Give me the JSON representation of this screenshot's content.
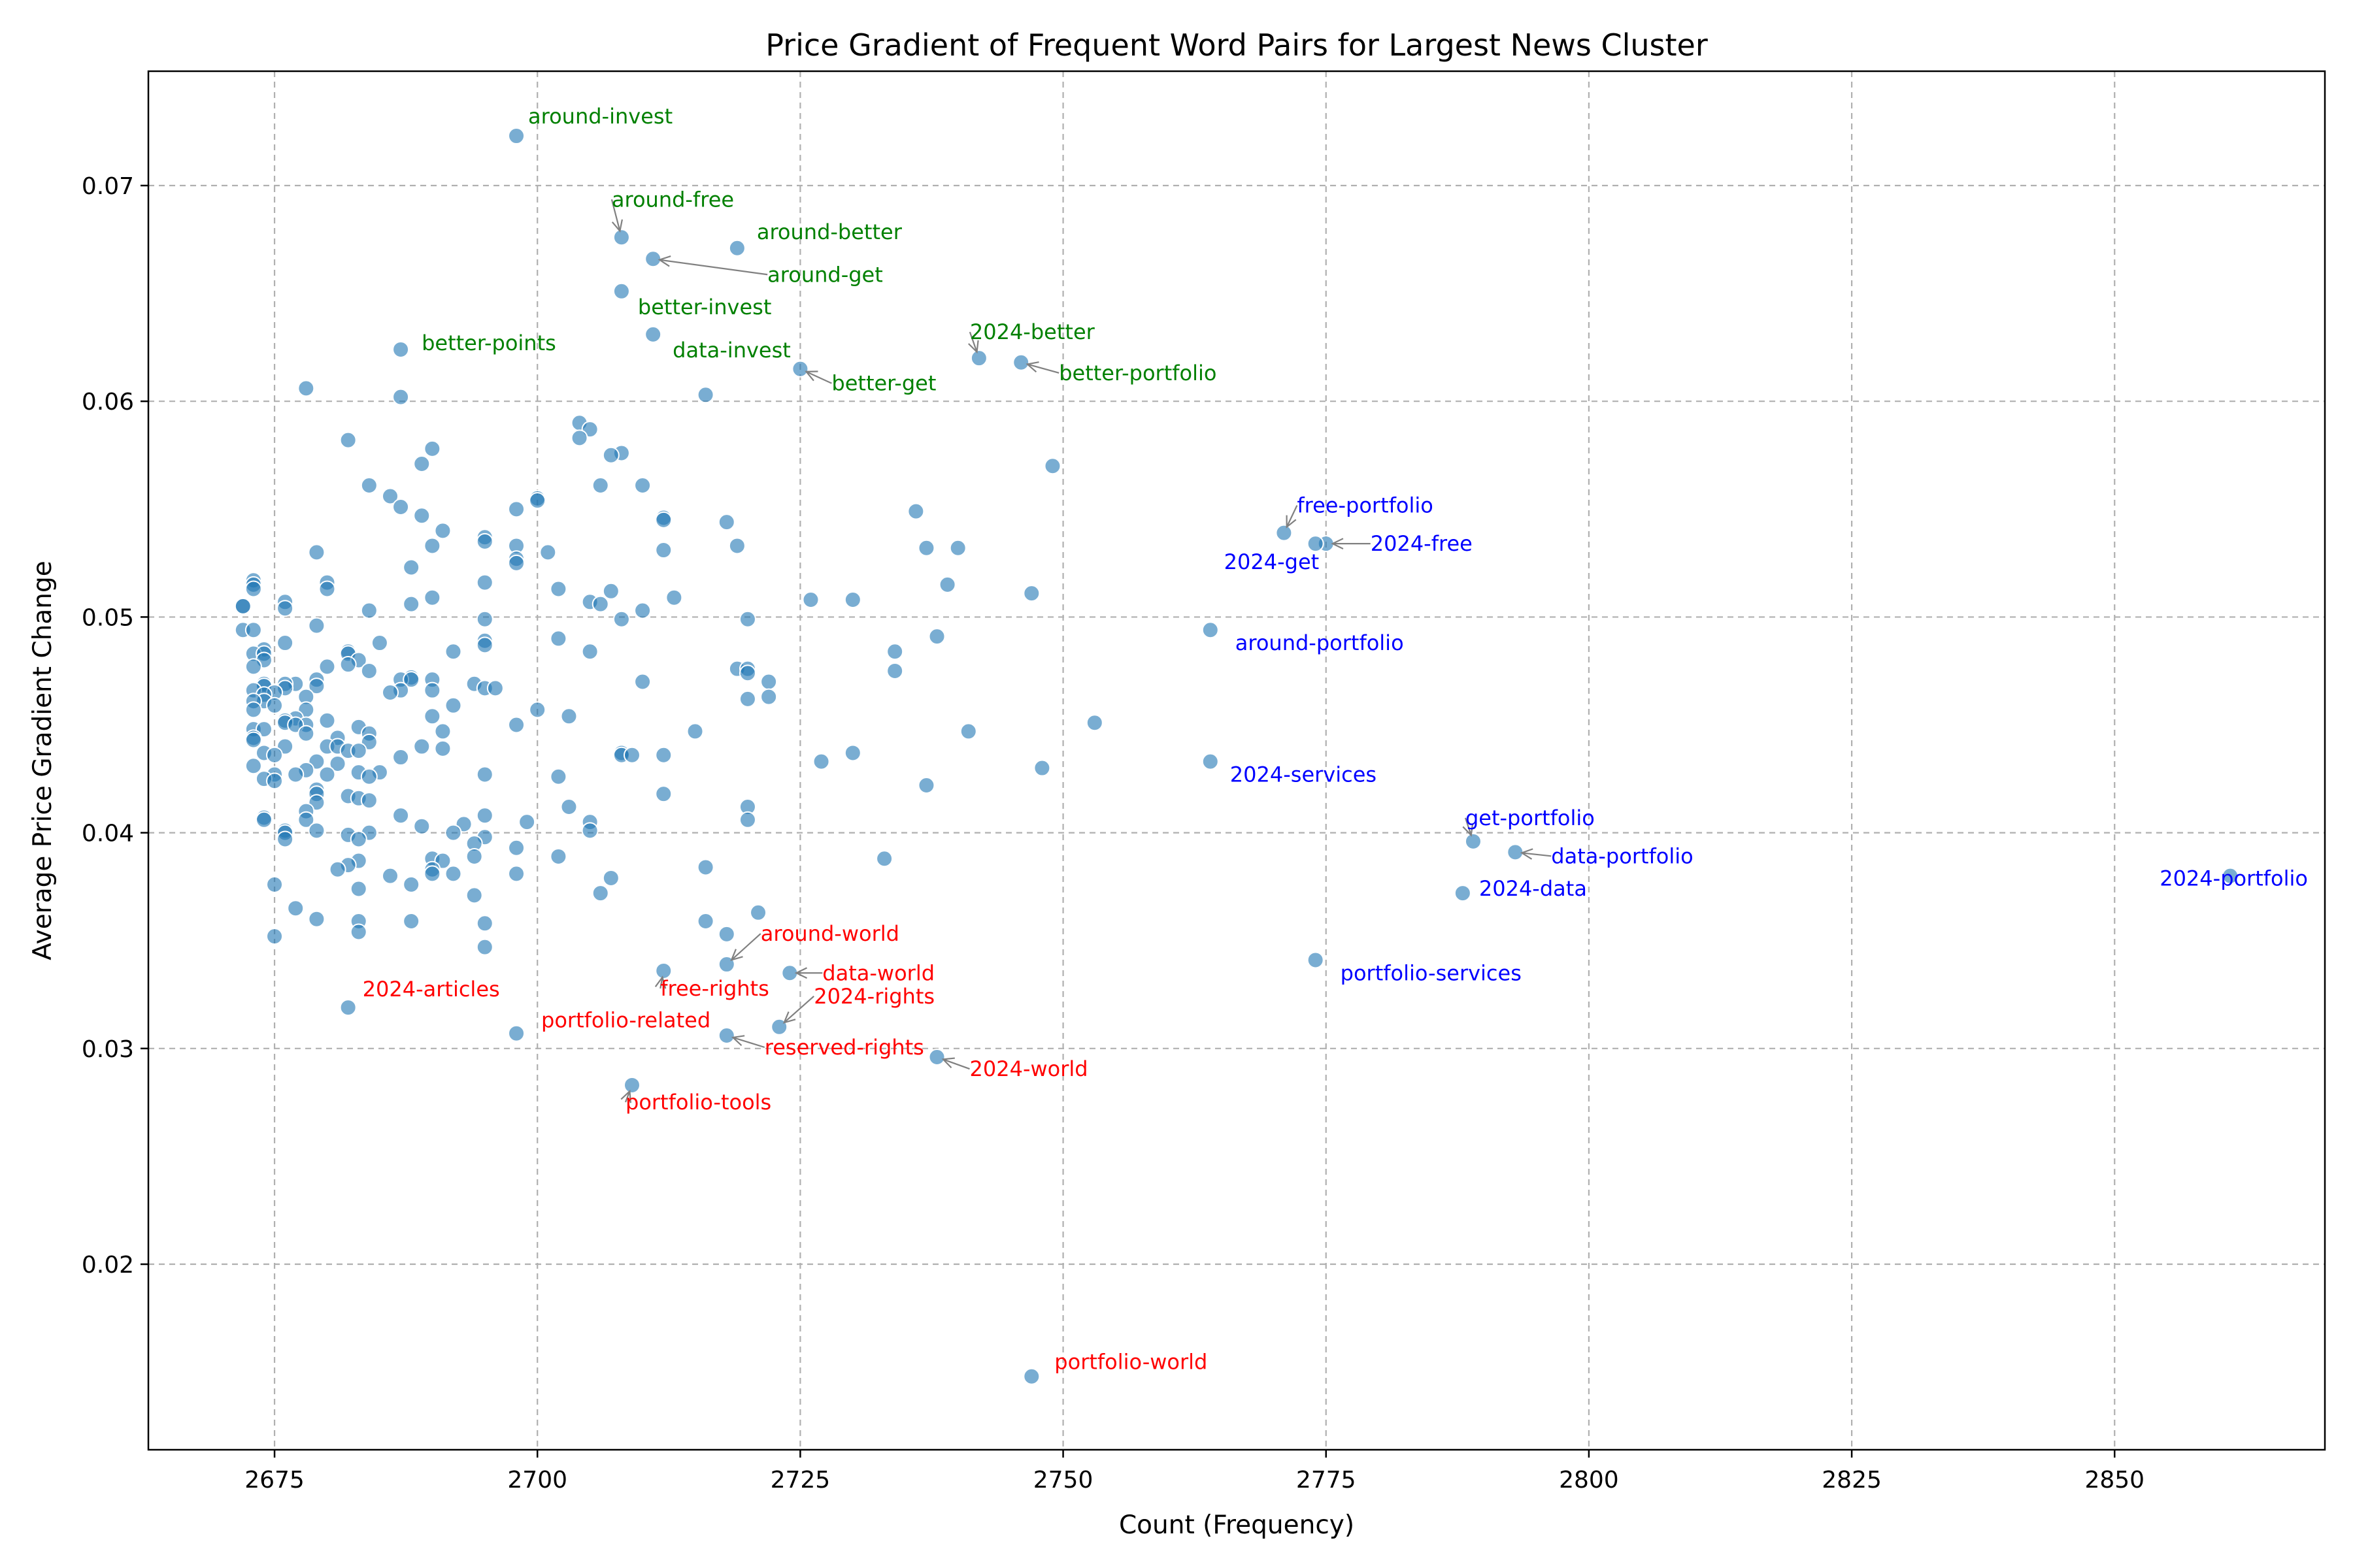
{
  "chart_data": {
    "type": "scatter",
    "title": "Price Gradient of Frequent Word Pairs for Largest News Cluster",
    "xlabel": "Count (Frequency)",
    "ylabel": "Average Price Gradient Change",
    "xlim": [
      2663,
      2870
    ],
    "ylim": [
      0.0114,
      0.0753
    ],
    "xticks": [
      "2675",
      "2700",
      "2725",
      "2750",
      "2775",
      "2800",
      "2825",
      "2850"
    ],
    "yticks": [
      "0.02",
      "0.03",
      "0.04",
      "0.05",
      "0.06",
      "0.07"
    ],
    "grid": true,
    "point_color": "#1f77b4",
    "annotation_colors": {
      "green": "#008000",
      "blue": "#0000ff",
      "red": "#ff0000"
    },
    "annotations": [
      {
        "label": "around-invest",
        "x": 2698,
        "y": 0.0723,
        "color": "green"
      },
      {
        "label": "around-free",
        "x": 2708,
        "y": 0.0676,
        "color": "green"
      },
      {
        "label": "around-better",
        "x": 2719,
        "y": 0.0671,
        "color": "green"
      },
      {
        "label": "around-get",
        "x": 2711,
        "y": 0.0666,
        "color": "green"
      },
      {
        "label": "better-invest",
        "x": 2708,
        "y": 0.0651,
        "color": "green"
      },
      {
        "label": "data-invest",
        "x": 2711,
        "y": 0.0631,
        "color": "green"
      },
      {
        "label": "better-points",
        "x": 2687,
        "y": 0.0624,
        "color": "green"
      },
      {
        "label": "2024-better",
        "x": 2742,
        "y": 0.062,
        "color": "green"
      },
      {
        "label": "better-portfolio",
        "x": 2746,
        "y": 0.0618,
        "color": "green"
      },
      {
        "label": "better-get",
        "x": 2725,
        "y": 0.0615,
        "color": "green"
      },
      {
        "label": "free-portfolio",
        "x": 2771,
        "y": 0.0539,
        "color": "blue"
      },
      {
        "label": "2024-free",
        "x": 2775,
        "y": 0.0534,
        "color": "blue"
      },
      {
        "label": "2024-get",
        "x": 2774,
        "y": 0.0534,
        "color": "blue"
      },
      {
        "label": "around-portfolio",
        "x": 2764,
        "y": 0.0494,
        "color": "blue"
      },
      {
        "label": "2024-services",
        "x": 2764,
        "y": 0.0433,
        "color": "blue"
      },
      {
        "label": "get-portfolio",
        "x": 2789,
        "y": 0.0396,
        "color": "blue"
      },
      {
        "label": "data-portfolio",
        "x": 2793,
        "y": 0.0391,
        "color": "blue"
      },
      {
        "label": "2024-portfolio",
        "x": 2861,
        "y": 0.038,
        "color": "blue"
      },
      {
        "label": "2024-data",
        "x": 2788,
        "y": 0.0372,
        "color": "blue"
      },
      {
        "label": "portfolio-services",
        "x": 2774,
        "y": 0.0341,
        "color": "blue"
      },
      {
        "label": "around-world",
        "x": 2718,
        "y": 0.0339,
        "color": "red"
      },
      {
        "label": "free-rights",
        "x": 2712,
        "y": 0.0336,
        "color": "red"
      },
      {
        "label": "data-world",
        "x": 2724,
        "y": 0.0335,
        "color": "red"
      },
      {
        "label": "2024-articles",
        "x": 2682,
        "y": 0.0319,
        "color": "red"
      },
      {
        "label": "2024-rights",
        "x": 2723,
        "y": 0.031,
        "color": "red"
      },
      {
        "label": "portfolio-related",
        "x": 2698,
        "y": 0.0307,
        "color": "red"
      },
      {
        "label": "reserved-rights",
        "x": 2718,
        "y": 0.0306,
        "color": "red"
      },
      {
        "label": "2024-world",
        "x": 2738,
        "y": 0.0296,
        "color": "red"
      },
      {
        "label": "portfolio-tools",
        "x": 2709,
        "y": 0.0283,
        "color": "red"
      },
      {
        "label": "portfolio-world",
        "x": 2747,
        "y": 0.0148,
        "color": "red"
      }
    ],
    "points": [
      [
        2698,
        0.0723
      ],
      [
        2708,
        0.0676
      ],
      [
        2719,
        0.0671
      ],
      [
        2711,
        0.0666
      ],
      [
        2708,
        0.0651
      ],
      [
        2711,
        0.0631
      ],
      [
        2687,
        0.0624
      ],
      [
        2742,
        0.062
      ],
      [
        2746,
        0.0618
      ],
      [
        2725,
        0.0615
      ],
      [
        2678,
        0.0606
      ],
      [
        2687,
        0.0602
      ],
      [
        2716,
        0.0603
      ],
      [
        2682,
        0.0582
      ],
      [
        2704,
        0.059
      ],
      [
        2705,
        0.0587
      ],
      [
        2704,
        0.0583
      ],
      [
        2690,
        0.0578
      ],
      [
        2708,
        0.0576
      ],
      [
        2707,
        0.0575
      ],
      [
        2689,
        0.0571
      ],
      [
        2749,
        0.057
      ],
      [
        2684,
        0.0561
      ],
      [
        2706,
        0.0561
      ],
      [
        2710,
        0.0561
      ],
      [
        2686,
        0.0556
      ],
      [
        2700,
        0.0555
      ],
      [
        2700,
        0.0554
      ],
      [
        2687,
        0.0551
      ],
      [
        2698,
        0.055
      ],
      [
        2736,
        0.0549
      ],
      [
        2689,
        0.0547
      ],
      [
        2712,
        0.0546
      ],
      [
        2712,
        0.0545
      ],
      [
        2718,
        0.0544
      ],
      [
        2691,
        0.054
      ],
      [
        2771,
        0.0539
      ],
      [
        2695,
        0.0537
      ],
      [
        2695,
        0.0535
      ],
      [
        2775,
        0.0534
      ],
      [
        2774,
        0.0534
      ],
      [
        2719,
        0.0533
      ],
      [
        2690,
        0.0533
      ],
      [
        2698,
        0.0533
      ],
      [
        2737,
        0.0532
      ],
      [
        2740,
        0.0532
      ],
      [
        2712,
        0.0531
      ],
      [
        2701,
        0.053
      ],
      [
        2679,
        0.053
      ],
      [
        2698,
        0.0527
      ],
      [
        2698,
        0.0525
      ],
      [
        2688,
        0.0523
      ],
      [
        2673,
        0.0517
      ],
      [
        2673,
        0.0515
      ],
      [
        2680,
        0.0516
      ],
      [
        2695,
        0.0516
      ],
      [
        2739,
        0.0515
      ],
      [
        2680,
        0.0513
      ],
      [
        2673,
        0.0513
      ],
      [
        2702,
        0.0513
      ],
      [
        2707,
        0.0512
      ],
      [
        2747,
        0.0511
      ],
      [
        2713,
        0.0509
      ],
      [
        2690,
        0.0509
      ],
      [
        2726,
        0.0508
      ],
      [
        2730,
        0.0508
      ],
      [
        2705,
        0.0507
      ],
      [
        2676,
        0.0507
      ],
      [
        2706,
        0.0506
      ],
      [
        2688,
        0.0506
      ],
      [
        2672,
        0.0505
      ],
      [
        2672,
        0.0505
      ],
      [
        2676,
        0.0504
      ],
      [
        2710,
        0.0503
      ],
      [
        2684,
        0.0503
      ],
      [
        2695,
        0.0499
      ],
      [
        2720,
        0.0499
      ],
      [
        2708,
        0.0499
      ],
      [
        2679,
        0.0496
      ],
      [
        2764,
        0.0494
      ],
      [
        2672,
        0.0494
      ],
      [
        2673,
        0.0494
      ],
      [
        2738,
        0.0491
      ],
      [
        2702,
        0.049
      ],
      [
        2695,
        0.0489
      ],
      [
        2676,
        0.0488
      ],
      [
        2685,
        0.0488
      ],
      [
        2695,
        0.0487
      ],
      [
        2674,
        0.0485
      ],
      [
        2682,
        0.0484
      ],
      [
        2692,
        0.0484
      ],
      [
        2705,
        0.0484
      ],
      [
        2734,
        0.0484
      ],
      [
        2673,
        0.0483
      ],
      [
        2674,
        0.0483
      ],
      [
        2682,
        0.0483
      ],
      [
        2683,
        0.048
      ],
      [
        2674,
        0.048
      ],
      [
        2682,
        0.0478
      ],
      [
        2673,
        0.0477
      ],
      [
        2680,
        0.0477
      ],
      [
        2719,
        0.0476
      ],
      [
        2720,
        0.0476
      ],
      [
        2734,
        0.0475
      ],
      [
        2684,
        0.0475
      ],
      [
        2720,
        0.0474
      ],
      [
        2688,
        0.0472
      ],
      [
        2687,
        0.0471
      ],
      [
        2688,
        0.0471
      ],
      [
        2690,
        0.0471
      ],
      [
        2679,
        0.0471
      ],
      [
        2722,
        0.047
      ],
      [
        2710,
        0.047
      ],
      [
        2677,
        0.0469
      ],
      [
        2674,
        0.0469
      ],
      [
        2676,
        0.0469
      ],
      [
        2694,
        0.0469
      ],
      [
        2674,
        0.0468
      ],
      [
        2679,
        0.0468
      ],
      [
        2695,
        0.0467
      ],
      [
        2696,
        0.0467
      ],
      [
        2676,
        0.0467
      ],
      [
        2690,
        0.0466
      ],
      [
        2673,
        0.0466
      ],
      [
        2687,
        0.0466
      ],
      [
        2675,
        0.0465
      ],
      [
        2686,
        0.0465
      ],
      [
        2674,
        0.0464
      ],
      [
        2678,
        0.0463
      ],
      [
        2722,
        0.0463
      ],
      [
        2720,
        0.0462
      ],
      [
        2674,
        0.0461
      ],
      [
        2673,
        0.0461
      ],
      [
        2692,
        0.0459
      ],
      [
        2675,
        0.0459
      ],
      [
        2678,
        0.0457
      ],
      [
        2700,
        0.0457
      ],
      [
        2673,
        0.0457
      ],
      [
        2703,
        0.0454
      ],
      [
        2690,
        0.0454
      ],
      [
        2677,
        0.0453
      ],
      [
        2676,
        0.0452
      ],
      [
        2680,
        0.0452
      ],
      [
        2676,
        0.0451
      ],
      [
        2753,
        0.0451
      ],
      [
        2678,
        0.045
      ],
      [
        2677,
        0.045
      ],
      [
        2698,
        0.045
      ],
      [
        2683,
        0.0449
      ],
      [
        2673,
        0.0448
      ],
      [
        2674,
        0.0448
      ],
      [
        2715,
        0.0447
      ],
      [
        2741,
        0.0447
      ],
      [
        2691,
        0.0447
      ],
      [
        2678,
        0.0446
      ],
      [
        2684,
        0.0446
      ],
      [
        2673,
        0.0444
      ],
      [
        2681,
        0.0444
      ],
      [
        2673,
        0.0443
      ],
      [
        2684,
        0.0442
      ],
      [
        2676,
        0.044
      ],
      [
        2680,
        0.044
      ],
      [
        2689,
        0.044
      ],
      [
        2681,
        0.044
      ],
      [
        2691,
        0.0439
      ],
      [
        2682,
        0.0438
      ],
      [
        2683,
        0.0438
      ],
      [
        2730,
        0.0437
      ],
      [
        2674,
        0.0437
      ],
      [
        2708,
        0.0437
      ],
      [
        2675,
        0.0436
      ],
      [
        2708,
        0.0436
      ],
      [
        2709,
        0.0436
      ],
      [
        2712,
        0.0436
      ],
      [
        2687,
        0.0435
      ],
      [
        2764,
        0.0433
      ],
      [
        2727,
        0.0433
      ],
      [
        2679,
        0.0433
      ],
      [
        2681,
        0.0432
      ],
      [
        2673,
        0.0431
      ],
      [
        2748,
        0.043
      ],
      [
        2678,
        0.0429
      ],
      [
        2685,
        0.0428
      ],
      [
        2683,
        0.0428
      ],
      [
        2677,
        0.0427
      ],
      [
        2675,
        0.0427
      ],
      [
        2680,
        0.0427
      ],
      [
        2695,
        0.0427
      ],
      [
        2702,
        0.0426
      ],
      [
        2684,
        0.0426
      ],
      [
        2674,
        0.0425
      ],
      [
        2675,
        0.0424
      ],
      [
        2737,
        0.0422
      ],
      [
        2679,
        0.042
      ],
      [
        2712,
        0.0418
      ],
      [
        2679,
        0.0418
      ],
      [
        2682,
        0.0417
      ],
      [
        2683,
        0.0416
      ],
      [
        2684,
        0.0415
      ],
      [
        2679,
        0.0414
      ],
      [
        2703,
        0.0412
      ],
      [
        2720,
        0.0412
      ],
      [
        2678,
        0.041
      ],
      [
        2687,
        0.0408
      ],
      [
        2695,
        0.0408
      ],
      [
        2674,
        0.0407
      ],
      [
        2674,
        0.0406
      ],
      [
        2678,
        0.0406
      ],
      [
        2720,
        0.0406
      ],
      [
        2705,
        0.0405
      ],
      [
        2699,
        0.0405
      ],
      [
        2693,
        0.0404
      ],
      [
        2689,
        0.0403
      ],
      [
        2705,
        0.0401
      ],
      [
        2679,
        0.0401
      ],
      [
        2676,
        0.0401
      ],
      [
        2692,
        0.04
      ],
      [
        2676,
        0.04
      ],
      [
        2684,
        0.04
      ],
      [
        2682,
        0.0399
      ],
      [
        2695,
        0.0398
      ],
      [
        2676,
        0.0397
      ],
      [
        2683,
        0.0397
      ],
      [
        2789,
        0.0396
      ],
      [
        2694,
        0.0395
      ],
      [
        2698,
        0.0393
      ],
      [
        2793,
        0.0391
      ],
      [
        2694,
        0.0389
      ],
      [
        2690,
        0.0388
      ],
      [
        2702,
        0.0389
      ],
      [
        2733,
        0.0388
      ],
      [
        2691,
        0.0387
      ],
      [
        2683,
        0.0387
      ],
      [
        2682,
        0.0385
      ],
      [
        2716,
        0.0384
      ],
      [
        2690,
        0.0383
      ],
      [
        2681,
        0.0383
      ],
      [
        2690,
        0.0381
      ],
      [
        2698,
        0.0381
      ],
      [
        2692,
        0.0381
      ],
      [
        2861,
        0.038
      ],
      [
        2686,
        0.038
      ],
      [
        2707,
        0.0379
      ],
      [
        2675,
        0.0376
      ],
      [
        2688,
        0.0376
      ],
      [
        2683,
        0.0374
      ],
      [
        2788,
        0.0372
      ],
      [
        2706,
        0.0372
      ],
      [
        2694,
        0.0371
      ],
      [
        2677,
        0.0365
      ],
      [
        2721,
        0.0363
      ],
      [
        2679,
        0.036
      ],
      [
        2688,
        0.0359
      ],
      [
        2683,
        0.0359
      ],
      [
        2716,
        0.0359
      ],
      [
        2695,
        0.0358
      ],
      [
        2683,
        0.0354
      ],
      [
        2718,
        0.0353
      ],
      [
        2675,
        0.0352
      ],
      [
        2695,
        0.0347
      ],
      [
        2774,
        0.0341
      ],
      [
        2718,
        0.0339
      ],
      [
        2712,
        0.0336
      ],
      [
        2724,
        0.0335
      ],
      [
        2682,
        0.0319
      ],
      [
        2723,
        0.031
      ],
      [
        2698,
        0.0307
      ],
      [
        2718,
        0.0306
      ],
      [
        2738,
        0.0296
      ],
      [
        2709,
        0.0283
      ],
      [
        2747,
        0.0148
      ]
    ]
  }
}
